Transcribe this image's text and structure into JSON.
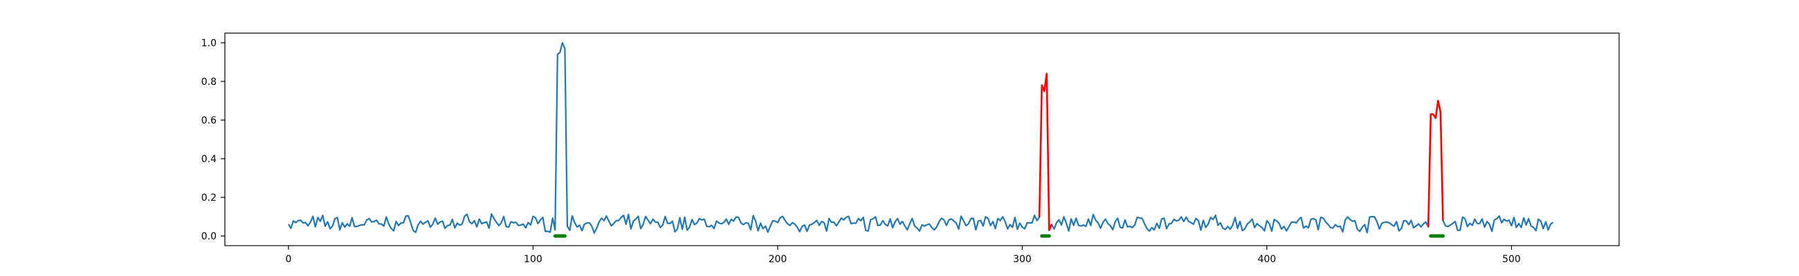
{
  "chart_data": {
    "type": "line",
    "title": "",
    "xlabel": "",
    "ylabel": "",
    "xlim": [
      -26,
      544
    ],
    "ylim": [
      -0.05,
      1.05
    ],
    "grid": false,
    "legend": "none",
    "x_ticks": [
      0,
      100,
      200,
      300,
      400,
      500
    ],
    "y_ticks": [
      0.0,
      0.2,
      0.4,
      0.6,
      0.8,
      1.0
    ],
    "x_tick_labels": [
      "0",
      "100",
      "200",
      "300",
      "400",
      "500"
    ],
    "y_tick_labels": [
      "0.0",
      "0.2",
      "0.4",
      "0.6",
      "0.8",
      "1.0"
    ],
    "colors": {
      "signal": "#1f77b4",
      "highlight": "#ff0000",
      "marker": "#008000"
    },
    "signal": {
      "x_start": 0,
      "x_end": 517,
      "baseline_mean": 0.065,
      "baseline_amplitude": 0.05
    },
    "spikes": [
      {
        "x_range": [
          110,
          114
        ],
        "values": [
          0.94,
          0.95,
          1.0,
          0.97,
          0.05
        ],
        "color": "#1f77b4"
      },
      {
        "x_range": [
          308,
          312
        ],
        "values": [
          0.78,
          0.75,
          0.84,
          0.03,
          0.06
        ],
        "color": "#ff0000"
      },
      {
        "x_range": [
          467,
          472
        ],
        "values": [
          0.63,
          0.63,
          0.61,
          0.7,
          0.64,
          0.08
        ],
        "color": "#ff0000"
      }
    ],
    "highlighted_segments": [
      {
        "x_range": [
          307,
          312
        ],
        "color": "#ff0000"
      },
      {
        "x_range": [
          466,
          472
        ],
        "color": "#ff0000"
      }
    ],
    "markers": [
      {
        "x_range": [
          109,
          113
        ],
        "y": 0.0,
        "color": "#008000"
      },
      {
        "x_range": [
          308,
          311
        ],
        "y": 0.0,
        "color": "#008000"
      },
      {
        "x_range": [
          467,
          472
        ],
        "y": 0.0,
        "color": "#008000"
      }
    ]
  }
}
